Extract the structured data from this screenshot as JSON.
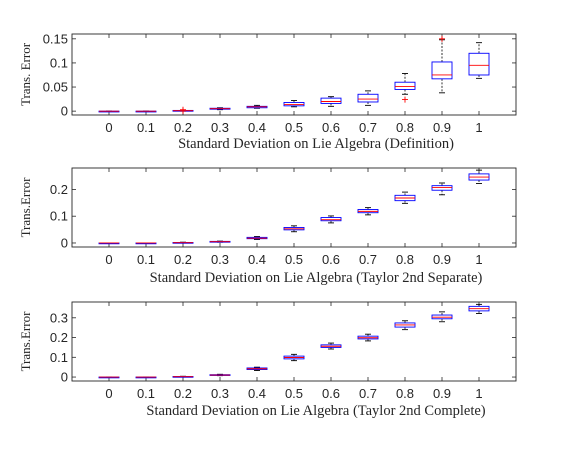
{
  "chart_data": [
    {
      "type": "box",
      "xlabel": "Standard Deviation on Lie Algebra (Definition)",
      "ylabel": "Trans. Error",
      "categories": [
        "0",
        "0.1",
        "0.2",
        "0.3",
        "0.4",
        "0.5",
        "0.6",
        "0.7",
        "0.8",
        "0.9",
        "1"
      ],
      "ylim": [
        -0.008,
        0.16
      ],
      "yticks": [
        0,
        0.05,
        0.1,
        0.15
      ],
      "ytick_labels": [
        "0",
        "0.05",
        "0.1",
        "0.15"
      ],
      "boxes": [
        {
          "min": 0,
          "q1": 0,
          "median": 0,
          "q3": 0,
          "max": 0,
          "outliers": []
        },
        {
          "min": 0,
          "q1": 0,
          "median": 0,
          "q3": 0,
          "max": 0,
          "outliers": []
        },
        {
          "min": 0,
          "q1": 0.0005,
          "median": 0.001,
          "q3": 0.0015,
          "max": 0.002,
          "outliers": [
            0.003,
            0.0005
          ]
        },
        {
          "min": 0.003,
          "q1": 0.004,
          "median": 0.005,
          "q3": 0.006,
          "max": 0.007,
          "outliers": []
        },
        {
          "min": 0.006,
          "q1": 0.007,
          "median": 0.009,
          "q3": 0.01,
          "max": 0.012,
          "outliers": []
        },
        {
          "min": 0.009,
          "q1": 0.011,
          "median": 0.014,
          "q3": 0.018,
          "max": 0.022,
          "outliers": []
        },
        {
          "min": 0.01,
          "q1": 0.016,
          "median": 0.02,
          "q3": 0.027,
          "max": 0.03,
          "outliers": []
        },
        {
          "min": 0.012,
          "q1": 0.019,
          "median": 0.025,
          "q3": 0.035,
          "max": 0.042,
          "outliers": []
        },
        {
          "min": 0.035,
          "q1": 0.045,
          "median": 0.051,
          "q3": 0.06,
          "max": 0.078,
          "outliers": [
            0.024
          ]
        },
        {
          "min": 0.038,
          "q1": 0.067,
          "median": 0.075,
          "q3": 0.102,
          "max": 0.148,
          "outliers": [
            0.15
          ]
        },
        {
          "min": 0.068,
          "q1": 0.075,
          "median": 0.095,
          "q3": 0.12,
          "max": 0.142,
          "outliers": []
        }
      ]
    },
    {
      "type": "box",
      "xlabel": "Standard Deviation on Lie Algebra (Taylor 2nd Separate)",
      "ylabel": "Trans.Error",
      "categories": [
        "0",
        "0.1",
        "0.2",
        "0.3",
        "0.4",
        "0.5",
        "0.6",
        "0.7",
        "0.8",
        "0.9",
        "1"
      ],
      "ylim": [
        -0.015,
        0.28
      ],
      "yticks": [
        0,
        0.1,
        0.2
      ],
      "ytick_labels": [
        "0",
        "0.1",
        "0.2"
      ],
      "boxes": [
        {
          "min": 0,
          "q1": 0,
          "median": 0,
          "q3": 0,
          "max": 0,
          "outliers": []
        },
        {
          "min": 0,
          "q1": 0,
          "median": 0,
          "q3": 0,
          "max": 0,
          "outliers": []
        },
        {
          "min": 0,
          "q1": 0.001,
          "median": 0.001,
          "q3": 0.002,
          "max": 0.003,
          "outliers": []
        },
        {
          "min": 0.003,
          "q1": 0.004,
          "median": 0.005,
          "q3": 0.006,
          "max": 0.007,
          "outliers": []
        },
        {
          "min": 0.013,
          "q1": 0.016,
          "median": 0.018,
          "q3": 0.021,
          "max": 0.024,
          "outliers": []
        },
        {
          "min": 0.042,
          "q1": 0.049,
          "median": 0.053,
          "q3": 0.058,
          "max": 0.064,
          "outliers": []
        },
        {
          "min": 0.075,
          "q1": 0.083,
          "median": 0.087,
          "q3": 0.095,
          "max": 0.101,
          "outliers": []
        },
        {
          "min": 0.105,
          "q1": 0.113,
          "median": 0.118,
          "q3": 0.125,
          "max": 0.132,
          "outliers": []
        },
        {
          "min": 0.148,
          "q1": 0.158,
          "median": 0.168,
          "q3": 0.178,
          "max": 0.19,
          "outliers": []
        },
        {
          "min": 0.18,
          "q1": 0.197,
          "median": 0.207,
          "q3": 0.214,
          "max": 0.224,
          "outliers": []
        },
        {
          "min": 0.222,
          "q1": 0.235,
          "median": 0.246,
          "q3": 0.258,
          "max": 0.272,
          "outliers": []
        }
      ]
    },
    {
      "type": "box",
      "xlabel": "Standard Deviation on Lie Algebra (Taylor 2nd Complete)",
      "ylabel": "Trans.Error",
      "categories": [
        "0",
        "0.1",
        "0.2",
        "0.3",
        "0.4",
        "0.5",
        "0.6",
        "0.7",
        "0.8",
        "0.9",
        "1"
      ],
      "ylim": [
        -0.02,
        0.38
      ],
      "yticks": [
        0,
        0.1,
        0.2,
        0.3
      ],
      "ytick_labels": [
        "0",
        "0.1",
        "0.2",
        "0.3"
      ],
      "boxes": [
        {
          "min": 0,
          "q1": 0,
          "median": 0,
          "q3": 0,
          "max": 0,
          "outliers": []
        },
        {
          "min": 0,
          "q1": 0,
          "median": 0,
          "q3": 0,
          "max": 0,
          "outliers": []
        },
        {
          "min": 0.001,
          "q1": 0.002,
          "median": 0.002,
          "q3": 0.003,
          "max": 0.004,
          "outliers": []
        },
        {
          "min": 0.007,
          "q1": 0.009,
          "median": 0.01,
          "q3": 0.012,
          "max": 0.014,
          "outliers": []
        },
        {
          "min": 0.033,
          "q1": 0.038,
          "median": 0.042,
          "q3": 0.046,
          "max": 0.05,
          "outliers": []
        },
        {
          "min": 0.083,
          "q1": 0.092,
          "median": 0.099,
          "q3": 0.106,
          "max": 0.115,
          "outliers": []
        },
        {
          "min": 0.142,
          "q1": 0.15,
          "median": 0.156,
          "q3": 0.163,
          "max": 0.172,
          "outliers": []
        },
        {
          "min": 0.183,
          "q1": 0.193,
          "median": 0.199,
          "q3": 0.207,
          "max": 0.217,
          "outliers": []
        },
        {
          "min": 0.24,
          "q1": 0.253,
          "median": 0.264,
          "q3": 0.274,
          "max": 0.285,
          "outliers": []
        },
        {
          "min": 0.28,
          "q1": 0.295,
          "median": 0.303,
          "q3": 0.314,
          "max": 0.33,
          "outliers": []
        },
        {
          "min": 0.322,
          "q1": 0.335,
          "median": 0.346,
          "q3": 0.358,
          "max": 0.368,
          "outliers": []
        }
      ]
    }
  ],
  "colors": {
    "box": "#0000ff",
    "median": "#ff0000",
    "whisker": "#000000",
    "outlier": "#ff0000",
    "axis": "#262626"
  }
}
